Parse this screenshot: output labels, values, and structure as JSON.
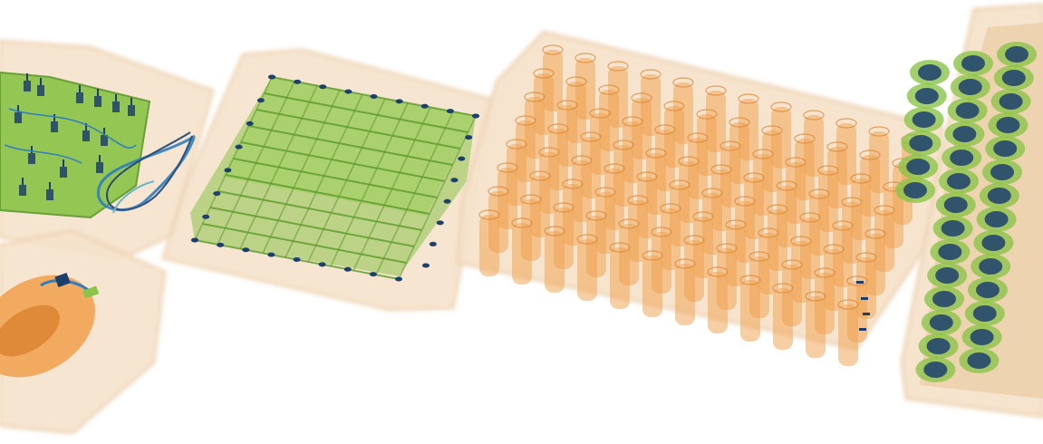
{
  "scene": {
    "kind": "x-ray baggage scan",
    "background": "#ffffff",
    "palette": {
      "container": "#f6e3cc",
      "container_edge": "#eccfad",
      "organic": "#f0a04c",
      "organic_dark": "#d9822f",
      "inorganic": "#8cc44a",
      "inorganic_dark": "#5e9a2c",
      "metal": "#1d3f6e",
      "metal_light": "#2f7fc0"
    },
    "objects": [
      {
        "name": "circuit-board",
        "material": "inorganic"
      },
      {
        "name": "cable-bundle",
        "material": "metal"
      },
      {
        "name": "small-package",
        "material": "organic"
      },
      {
        "name": "grid-rack",
        "material": "inorganic"
      },
      {
        "name": "vial-tray",
        "material": "organic"
      },
      {
        "name": "battery-rows",
        "material": "metal"
      }
    ]
  }
}
